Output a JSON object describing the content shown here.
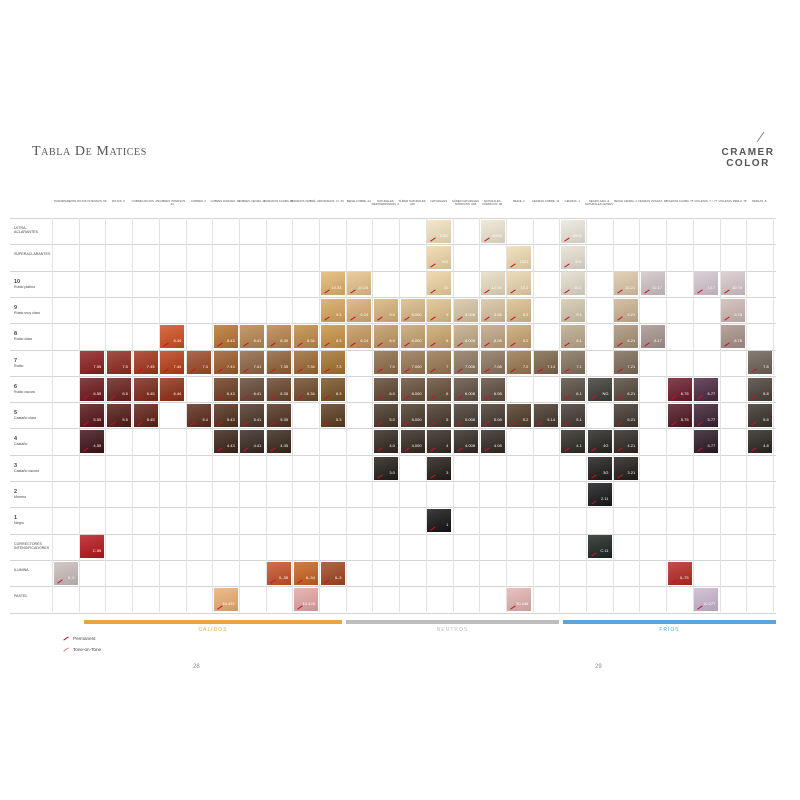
{
  "title": "Tabla De Matices",
  "brand": {
    "line1": "CRAMER",
    "line2": "COLOR"
  },
  "columns": [
    "TRANSPARENTE",
    "ROJOS INTENSOS .55",
    "ROJOS .5",
    "COBRES ROJOS .45",
    "COBRES INTENSOS .44",
    "COBRES .4",
    "COBRES DORADO .43",
    "COBRES CENIZA .41",
    "DORADOS CAOBA .35",
    "DORADOS OMBRÉ .34",
    "DORADOS .3 / .33",
    "BEIGE COBRE .24",
    "NATURALES MEDITERRÁNEOS .0",
    "SÚPER NATURALES .000",
    "NATURALES",
    "SÚPER NATURALES NÓRDICOS .008",
    "NATURALES NÓRDICOS .08",
    "BEIGE .2",
    "CENIZAS COBRE .14",
    "CENIZAS .1",
    "NEGRO AZUL & NATURALES GRISES",
    "BEIGE CENIZA .2",
    "CENIZAS VIOLETA .17",
    "VIOLETAS CAOBA .75",
    "VIOLETAS .7 / .77",
    "VIOLETAS PERLA .78",
    "PERLAS .8"
  ],
  "rows": [
    {
      "num": "",
      "label": "ULTRA-ACLARANTES",
      "sub": ""
    },
    {
      "num": "",
      "label": "SUPERACLARANTES",
      "sub": ""
    },
    {
      "num": "10",
      "label": "",
      "sub": "Rubio platino"
    },
    {
      "num": "9",
      "label": "",
      "sub": "Rubio muy claro"
    },
    {
      "num": "8",
      "label": "",
      "sub": "Rubio claro"
    },
    {
      "num": "7",
      "label": "",
      "sub": "Rubio"
    },
    {
      "num": "6",
      "label": "",
      "sub": "Rubio oscuro"
    },
    {
      "num": "5",
      "label": "",
      "sub": "Castaño claro"
    },
    {
      "num": "4",
      "label": "",
      "sub": "Castaño"
    },
    {
      "num": "3",
      "label": "",
      "sub": "Castaño oscuro"
    },
    {
      "num": "2",
      "label": "",
      "sub": "Moreno"
    },
    {
      "num": "1",
      "label": "",
      "sub": "Negro"
    },
    {
      "num": "",
      "label": "CORRECTORES INTENSIFICADORES",
      "sub": ""
    },
    {
      "num": "",
      "label": "ILUMINA",
      "sub": ""
    },
    {
      "num": "",
      "label": "PASTEL",
      "sub": ""
    }
  ],
  "swatches": [
    {
      "row": 0,
      "col": 14,
      "code": "1000",
      "color": "#f3e2bf"
    },
    {
      "row": 0,
      "col": 16,
      "code": "1008",
      "color": "#eee6d2"
    },
    {
      "row": 0,
      "col": 19,
      "code": "1001",
      "color": "#ece7dc"
    },
    {
      "row": 1,
      "col": 14,
      "code": "900",
      "color": "#f0d6a6"
    },
    {
      "row": 1,
      "col": 17,
      "code": "1002",
      "color": "#efdcb0"
    },
    {
      "row": 1,
      "col": 19,
      "code": "901",
      "color": "#e7e0d2"
    },
    {
      "row": 2,
      "col": 10,
      "code": "10.33",
      "color": "#e2b56e"
    },
    {
      "row": 2,
      "col": 11,
      "code": "10.24",
      "color": "#e7c28a"
    },
    {
      "row": 2,
      "col": 14,
      "code": "10",
      "color": "#ecd39f"
    },
    {
      "row": 2,
      "col": 16,
      "code": "10.08",
      "color": "#e8dcc0"
    },
    {
      "row": 2,
      "col": 17,
      "code": "10.2",
      "color": "#ead5aa"
    },
    {
      "row": 2,
      "col": 19,
      "code": "10.1",
      "color": "#e3dccb"
    },
    {
      "row": 2,
      "col": 21,
      "code": "10.21",
      "color": "#dcc6a8"
    },
    {
      "row": 2,
      "col": 22,
      "code": "10.17",
      "color": "#cfc2c4"
    },
    {
      "row": 2,
      "col": 24,
      "code": "10.7",
      "color": "#d4c5cf"
    },
    {
      "row": 2,
      "col": 25,
      "code": "10.78",
      "color": "#d7c7c9"
    },
    {
      "row": 3,
      "col": 10,
      "code": "9.3",
      "color": "#d7a55d"
    },
    {
      "row": 3,
      "col": 11,
      "code": "9.24",
      "color": "#d9ae76"
    },
    {
      "row": 3,
      "col": 12,
      "code": "9.0",
      "color": "#d7b27a"
    },
    {
      "row": 3,
      "col": 13,
      "code": "9.000",
      "color": "#d7b985"
    },
    {
      "row": 3,
      "col": 14,
      "code": "9",
      "color": "#dfc08a"
    },
    {
      "row": 3,
      "col": 15,
      "code": "9.008",
      "color": "#d7c5a4"
    },
    {
      "row": 3,
      "col": 16,
      "code": "9.08",
      "color": "#d6c29f"
    },
    {
      "row": 3,
      "col": 17,
      "code": "9.2",
      "color": "#dbbe8c"
    },
    {
      "row": 3,
      "col": 19,
      "code": "9.1",
      "color": "#d3c7ad"
    },
    {
      "row": 3,
      "col": 21,
      "code": "9.21",
      "color": "#ccb392"
    },
    {
      "row": 3,
      "col": 25,
      "code": "9.78",
      "color": "#cdb9b4"
    },
    {
      "row": 4,
      "col": 4,
      "code": "8.44",
      "color": "#cf4e1f"
    },
    {
      "row": 4,
      "col": 6,
      "code": "8.43",
      "color": "#b8732e"
    },
    {
      "row": 4,
      "col": 7,
      "code": "8.41",
      "color": "#b88650"
    },
    {
      "row": 4,
      "col": 8,
      "code": "8.35",
      "color": "#b98349"
    },
    {
      "row": 4,
      "col": 9,
      "code": "8.34",
      "color": "#bf8a44"
    },
    {
      "row": 4,
      "col": 10,
      "code": "8.3",
      "color": "#c99243"
    },
    {
      "row": 4,
      "col": 11,
      "code": "8.24",
      "color": "#c6955c"
    },
    {
      "row": 4,
      "col": 12,
      "code": "8.0",
      "color": "#bf9863"
    },
    {
      "row": 4,
      "col": 13,
      "code": "8.000",
      "color": "#c4a26e"
    },
    {
      "row": 4,
      "col": 14,
      "code": "8",
      "color": "#caa56a"
    },
    {
      "row": 4,
      "col": 15,
      "code": "8.008",
      "color": "#c1a987"
    },
    {
      "row": 4,
      "col": 16,
      "code": "8.08",
      "color": "#bfa482"
    },
    {
      "row": 4,
      "col": 17,
      "code": "8.2",
      "color": "#c8a370"
    },
    {
      "row": 4,
      "col": 19,
      "code": "8.1",
      "color": "#baa98c"
    },
    {
      "row": 4,
      "col": 21,
      "code": "8.21",
      "color": "#a89277"
    },
    {
      "row": 4,
      "col": 22,
      "code": "8.17",
      "color": "#a6948f"
    },
    {
      "row": 4,
      "col": 25,
      "code": "8.78",
      "color": "#a89288"
    },
    {
      "row": 5,
      "col": 1,
      "code": "7.55",
      "color": "#8b1c1d"
    },
    {
      "row": 5,
      "col": 2,
      "code": "7.5",
      "color": "#8e2a20"
    },
    {
      "row": 5,
      "col": 3,
      "code": "7.45",
      "color": "#a3321b"
    },
    {
      "row": 5,
      "col": 4,
      "code": "7.44",
      "color": "#b73d17"
    },
    {
      "row": 5,
      "col": 5,
      "code": "7.4",
      "color": "#9c4726"
    },
    {
      "row": 5,
      "col": 6,
      "code": "7.43",
      "color": "#9a5a2a"
    },
    {
      "row": 5,
      "col": 7,
      "code": "7.41",
      "color": "#8f6543"
    },
    {
      "row": 5,
      "col": 8,
      "code": "7.35",
      "color": "#8f5f35"
    },
    {
      "row": 5,
      "col": 9,
      "code": "7.34",
      "color": "#9a6733"
    },
    {
      "row": 5,
      "col": 10,
      "code": "7.3",
      "color": "#a3722f"
    },
    {
      "row": 5,
      "col": 12,
      "code": "7.0",
      "color": "#8d6b47"
    },
    {
      "row": 5,
      "col": 13,
      "code": "7.000",
      "color": "#957552"
    },
    {
      "row": 5,
      "col": 14,
      "code": "7",
      "color": "#977650"
    },
    {
      "row": 5,
      "col": 15,
      "code": "7.008",
      "color": "#8d7760"
    },
    {
      "row": 5,
      "col": 16,
      "code": "7.08",
      "color": "#8b735b"
    },
    {
      "row": 5,
      "col": 17,
      "code": "7.2",
      "color": "#98774f"
    },
    {
      "row": 5,
      "col": 18,
      "code": "7.14",
      "color": "#7d6449"
    },
    {
      "row": 5,
      "col": 19,
      "code": "7.1",
      "color": "#83725c"
    },
    {
      "row": 5,
      "col": 21,
      "code": "7.21",
      "color": "#7c6a57"
    },
    {
      "row": 5,
      "col": 26,
      "code": "7.8",
      "color": "#6d6055"
    },
    {
      "row": 6,
      "col": 1,
      "code": "6.55",
      "color": "#6e1618"
    },
    {
      "row": 6,
      "col": 2,
      "code": "6.5",
      "color": "#6a1e1a"
    },
    {
      "row": 6,
      "col": 3,
      "code": "6.45",
      "color": "#7c2717"
    },
    {
      "row": 6,
      "col": 4,
      "code": "6.44",
      "color": "#8d2f15"
    },
    {
      "row": 6,
      "col": 6,
      "code": "6.43",
      "color": "#6d3d21"
    },
    {
      "row": 6,
      "col": 7,
      "code": "6.41",
      "color": "#654634"
    },
    {
      "row": 6,
      "col": 8,
      "code": "6.35",
      "color": "#67432a"
    },
    {
      "row": 6,
      "col": 9,
      "code": "6.34",
      "color": "#6f4a28"
    },
    {
      "row": 6,
      "col": 10,
      "code": "6.3",
      "color": "#765125"
    },
    {
      "row": 6,
      "col": 12,
      "code": "6.0",
      "color": "#5f4632"
    },
    {
      "row": 6,
      "col": 13,
      "code": "6.000",
      "color": "#664d38"
    },
    {
      "row": 6,
      "col": 14,
      "code": "6",
      "color": "#654c37"
    },
    {
      "row": 6,
      "col": 15,
      "code": "6.008",
      "color": "#604e3f"
    },
    {
      "row": 6,
      "col": 16,
      "code": "6.08",
      "color": "#5d4b3c"
    },
    {
      "row": 6,
      "col": 19,
      "code": "6.1",
      "color": "#574c3f"
    },
    {
      "row": 6,
      "col": 20,
      "code": "NG",
      "color": "#3c3a34"
    },
    {
      "row": 6,
      "col": 21,
      "code": "6.21",
      "color": "#54473a"
    },
    {
      "row": 6,
      "col": 23,
      "code": "6.75",
      "color": "#6a1a28"
    },
    {
      "row": 6,
      "col": 24,
      "code": "6.77",
      "color": "#4b2840"
    },
    {
      "row": 6,
      "col": 26,
      "code": "6.8",
      "color": "#4a4037"
    },
    {
      "row": 7,
      "col": 1,
      "code": "5.55",
      "color": "#551216"
    },
    {
      "row": 7,
      "col": 2,
      "code": "5.5",
      "color": "#521915"
    },
    {
      "row": 7,
      "col": 3,
      "code": "5.45",
      "color": "#5e1f14"
    },
    {
      "row": 7,
      "col": 5,
      "code": "5.4",
      "color": "#5a2a1a"
    },
    {
      "row": 7,
      "col": 6,
      "code": "5.43",
      "color": "#512e1a"
    },
    {
      "row": 7,
      "col": 7,
      "code": "5.41",
      "color": "#4c3528"
    },
    {
      "row": 7,
      "col": 8,
      "code": "5.35",
      "color": "#4f3220"
    },
    {
      "row": 7,
      "col": 10,
      "code": "5.3",
      "color": "#593b1c"
    },
    {
      "row": 7,
      "col": 12,
      "code": "5.0",
      "color": "#463426"
    },
    {
      "row": 7,
      "col": 13,
      "code": "5.000",
      "color": "#4b392b"
    },
    {
      "row": 7,
      "col": 14,
      "code": "5",
      "color": "#48372a"
    },
    {
      "row": 7,
      "col": 15,
      "code": "5.008",
      "color": "#463a30"
    },
    {
      "row": 7,
      "col": 16,
      "code": "5.08",
      "color": "#44382e"
    },
    {
      "row": 7,
      "col": 17,
      "code": "5.2",
      "color": "#4f3b28"
    },
    {
      "row": 7,
      "col": 18,
      "code": "5.14",
      "color": "#45362a"
    },
    {
      "row": 7,
      "col": 19,
      "code": "5.1",
      "color": "#413830"
    },
    {
      "row": 7,
      "col": 21,
      "code": "5.21",
      "color": "#3f352d"
    },
    {
      "row": 7,
      "col": 23,
      "code": "5.75",
      "color": "#4f1520"
    },
    {
      "row": 7,
      "col": 24,
      "code": "5.77",
      "color": "#3a2033"
    },
    {
      "row": 7,
      "col": 26,
      "code": "5.8",
      "color": "#38312b"
    },
    {
      "row": 8,
      "col": 1,
      "code": "4.55",
      "color": "#3e1013"
    },
    {
      "row": 8,
      "col": 6,
      "code": "4.43",
      "color": "#3a2316"
    },
    {
      "row": 8,
      "col": 7,
      "code": "4.41",
      "color": "#35271f"
    },
    {
      "row": 8,
      "col": 8,
      "code": "4.35",
      "color": "#38261a"
    },
    {
      "row": 8,
      "col": 12,
      "code": "4.0",
      "color": "#31261e"
    },
    {
      "row": 8,
      "col": 13,
      "code": "4.000",
      "color": "#33281f"
    },
    {
      "row": 8,
      "col": 14,
      "code": "4",
      "color": "#32271f"
    },
    {
      "row": 8,
      "col": 15,
      "code": "4.008",
      "color": "#302822"
    },
    {
      "row": 8,
      "col": 16,
      "code": "4.08",
      "color": "#2f2721"
    },
    {
      "row": 8,
      "col": 19,
      "code": "4.1",
      "color": "#2d2823"
    },
    {
      "row": 8,
      "col": 20,
      "code": "4G",
      "color": "#24231f"
    },
    {
      "row": 8,
      "col": 21,
      "code": "4.21",
      "color": "#2c2621"
    },
    {
      "row": 8,
      "col": 24,
      "code": "4.77",
      "color": "#2a1825"
    },
    {
      "row": 8,
      "col": 26,
      "code": "4.8",
      "color": "#29241f"
    },
    {
      "row": 9,
      "col": 12,
      "code": "3.0",
      "color": "#221b16"
    },
    {
      "row": 9,
      "col": 14,
      "code": "3",
      "color": "#221b17"
    },
    {
      "row": 9,
      "col": 20,
      "code": "3G",
      "color": "#1c1b18"
    },
    {
      "row": 9,
      "col": 21,
      "code": "3.21",
      "color": "#201c18"
    },
    {
      "row": 10,
      "col": 20,
      "code": "2.11",
      "color": "#161719"
    },
    {
      "row": 11,
      "col": 14,
      "code": "1",
      "color": "#141313"
    },
    {
      "row": 12,
      "col": 1,
      "code": "C.55",
      "color": "#b8151a"
    },
    {
      "row": 12,
      "col": 20,
      "code": "C.11",
      "color": "#1d2420"
    },
    {
      "row": 13,
      "col": 0,
      "code": "IL.0",
      "color": "#c9bdbb"
    },
    {
      "row": 13,
      "col": 8,
      "code": "IL.35",
      "color": "#c45125"
    },
    {
      "row": 13,
      "col": 9,
      "code": "IL.34",
      "color": "#c9611e"
    },
    {
      "row": 13,
      "col": 10,
      "code": "IL.3",
      "color": "#a0461f"
    },
    {
      "row": 13,
      "col": 23,
      "code": "IL.75",
      "color": "#b52a22"
    },
    {
      "row": 14,
      "col": 6,
      "code": "10.437",
      "color": "#ecae73"
    },
    {
      "row": 14,
      "col": 9,
      "code": "10.428",
      "color": "#e4a7a4"
    },
    {
      "row": 14,
      "col": 17,
      "code": "10.246",
      "color": "#e4b3b0"
    },
    {
      "row": 14,
      "col": 24,
      "code": "10.077",
      "color": "#cbb6d1"
    }
  ],
  "bands": [
    {
      "label": "CÁLIDOS",
      "color": "#e8a541"
    },
    {
      "label": "NEUTROS",
      "color": "#bdbdbd"
    },
    {
      "label": "FRÍOS",
      "color": "#5aa6dc"
    }
  ],
  "legend": [
    {
      "label": "Permanent"
    },
    {
      "label": "Tone-on-Tone"
    }
  ],
  "pages": {
    "left": "28",
    "right": "29"
  }
}
